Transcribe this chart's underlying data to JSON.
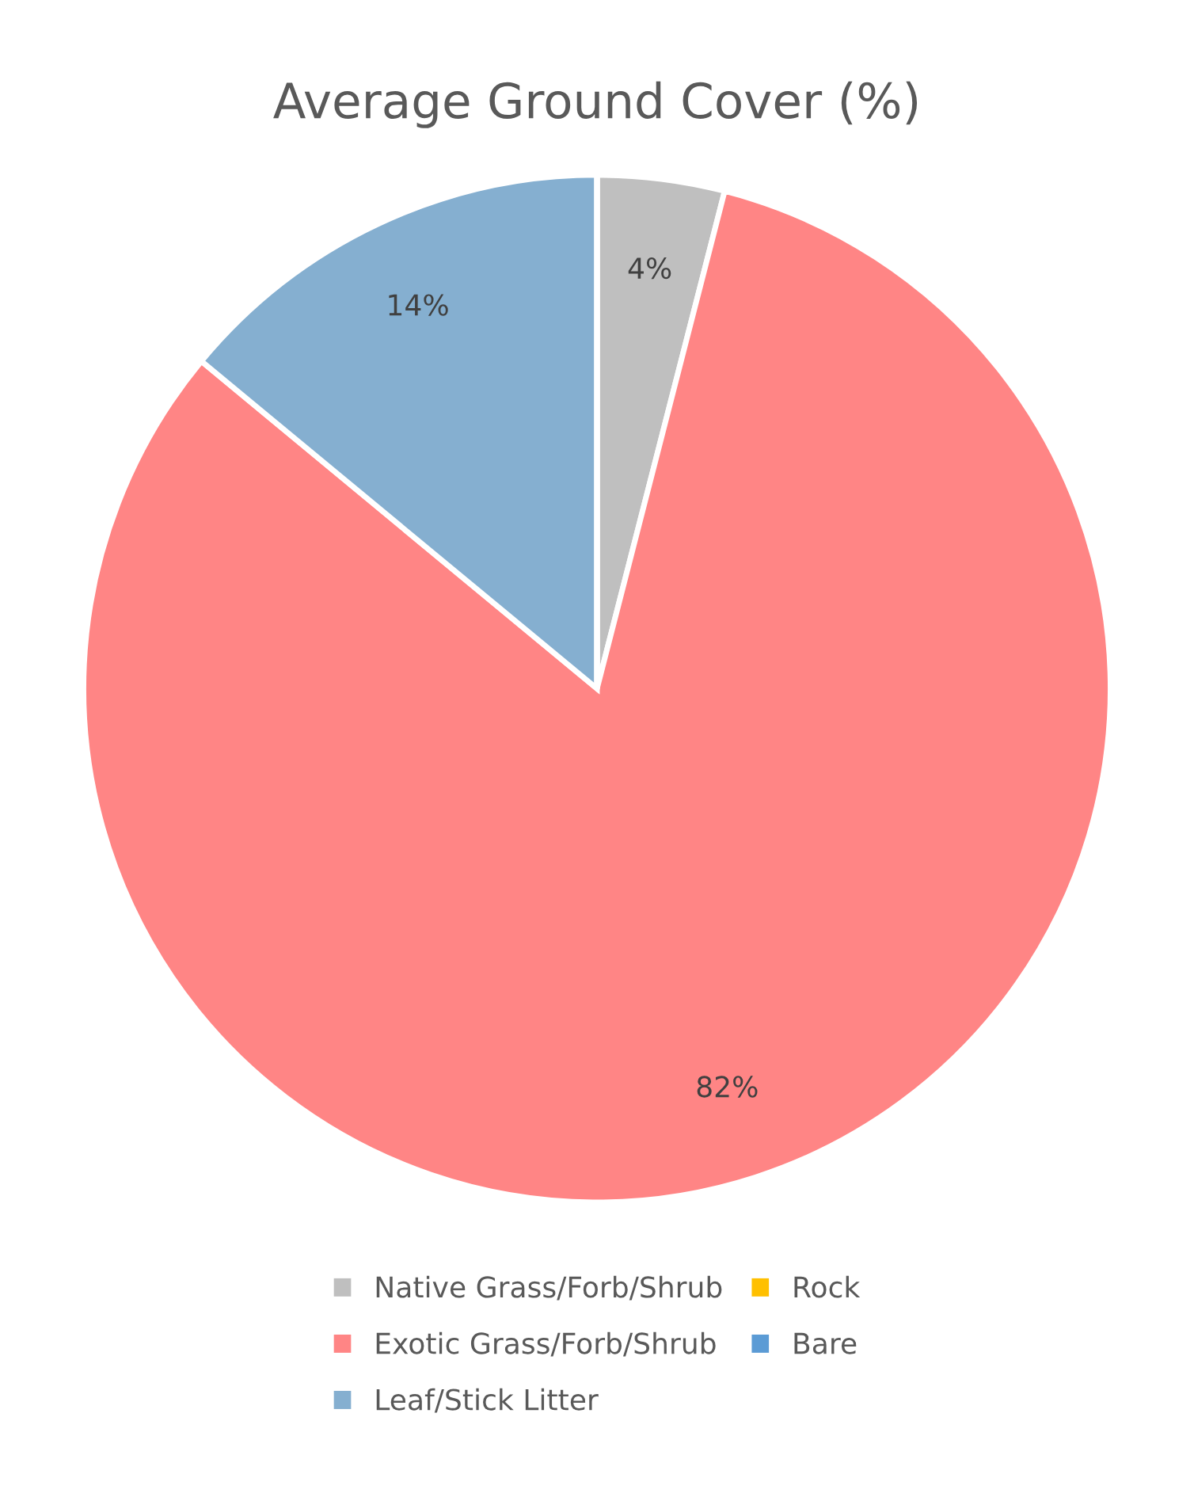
{
  "chart_data": {
    "type": "pie",
    "title": "Average Ground Cover (%)",
    "categories": [
      "Native Grass/Forb/Shrub",
      "Exotic Grass/Forb/Shrub",
      "Leaf/Stick Litter",
      "Rock",
      "Bare"
    ],
    "values": [
      4,
      82,
      14,
      0,
      0
    ],
    "colors": [
      "#bfbfbf",
      "#ff8585",
      "#85afd0",
      "#ffc000",
      "#5b9bd5"
    ],
    "value_labels": [
      "4%",
      "82%",
      "14%",
      null,
      null
    ],
    "legend": "bottom"
  }
}
